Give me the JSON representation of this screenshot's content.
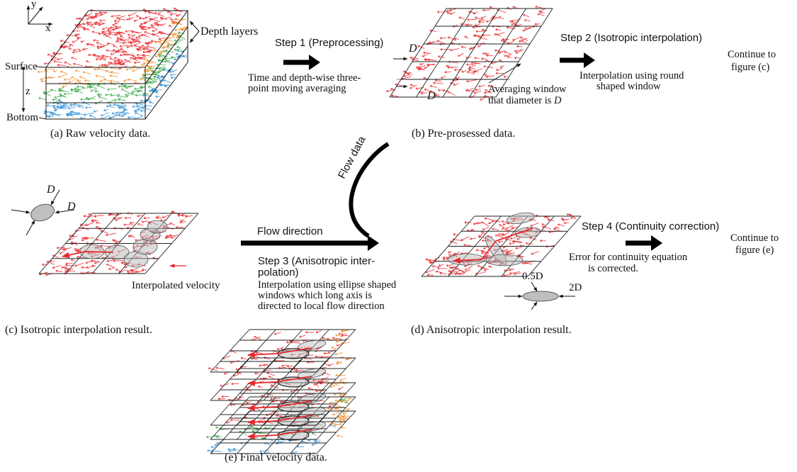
{
  "colors": {
    "red": "#e8262b",
    "orange": "#f28c28",
    "green": "#39a845",
    "blue": "#2f8fd6",
    "ellipse_fill": "#b8b8b8",
    "grid": "#222222"
  },
  "panel_a": {
    "axis_y": "y",
    "axis_x": "x",
    "axis_z": "z",
    "depth_layers": "Depth layers",
    "surface": "Surface",
    "bottom": "Bottom",
    "caption": "(a) Raw velocity data."
  },
  "step1": {
    "title": "Step 1 (Preprocessing)",
    "desc_line1": "Time and depth-wise three-",
    "desc_line2": "point moving averaging"
  },
  "panel_b": {
    "d_top": "D",
    "d_bottom": "D",
    "window_line1": "Averaging window",
    "window_line2_prefix": "that diameter is ",
    "window_line2_var": "D",
    "caption": "(b) Pre-prosessed data."
  },
  "step2": {
    "title": "Step 2 (Isotropic interpolation)",
    "desc_line1": "Interpolation using round",
    "desc_line2": "shaped window",
    "continue_line1": "Continue to",
    "continue_line2": "figure (c)"
  },
  "panel_c": {
    "d_top": "D",
    "d_right": "D",
    "interp_label": "Interpolated velocity",
    "caption": "(c) Isotropic interpolation result."
  },
  "flow": {
    "flow_data": "Flow data",
    "flow_direction": "Flow direction"
  },
  "step3": {
    "title_line1": "Step 3 (Anisotropic inter-",
    "title_line2": "polation)",
    "desc_line1": "Interpolation using ellipse shaped",
    "desc_line2": "windows which long axis is",
    "desc_line3": "directed to local flow direction"
  },
  "panel_d": {
    "half_d": "0.5D",
    "two_d": "2D",
    "caption": "(d) Anisotropic interpolation result."
  },
  "step4": {
    "title": "Step 4 (Continuity correction)",
    "desc_line1": "Error for continuity equation",
    "desc_line2": "is corrected.",
    "continue_line1": "Continue to",
    "continue_line2": "figure (e)"
  },
  "panel_e": {
    "caption": "(e) Final velocity data."
  }
}
